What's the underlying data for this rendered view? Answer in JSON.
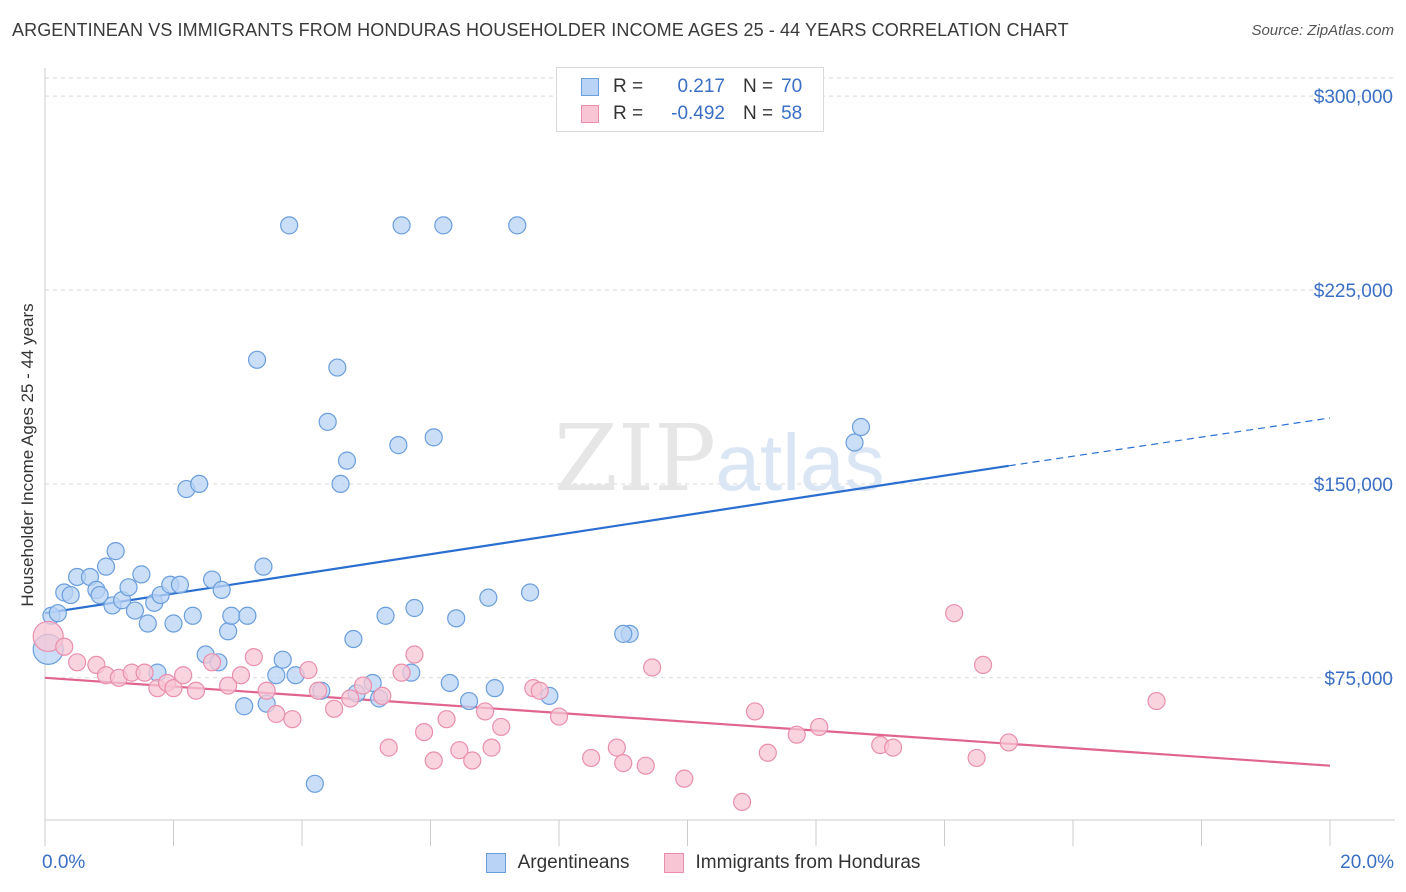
{
  "header": {
    "title": "ARGENTINEAN VS IMMIGRANTS FROM HONDURAS HOUSEHOLDER INCOME AGES 25 - 44 YEARS CORRELATION CHART",
    "source": "Source: ZipAtlas.com"
  },
  "legend_top": {
    "rows": [
      {
        "r_label": "R =",
        "r_value": "0.217",
        "n_label": "N =",
        "n_value": "70"
      },
      {
        "r_label": "R =",
        "r_value": "-0.492",
        "n_label": "N =",
        "n_value": "58"
      }
    ]
  },
  "legend_bottom": {
    "items": [
      {
        "label": "Argentineans"
      },
      {
        "label": "Immigrants from Honduras"
      }
    ]
  },
  "colors": {
    "blue_fill": "#b8d3f5",
    "blue_stroke": "#6b9edc",
    "blue_line": "#2a6fd0",
    "pink_fill": "#f7c5d4",
    "pink_stroke": "#e98fad",
    "pink_line": "#e0648f",
    "tick_text": "#3a6fc4",
    "grid": "#d9d9d9"
  },
  "watermark": {
    "zip": "ZIP",
    "atlas": "atlas"
  },
  "chart_data": {
    "type": "scatter",
    "title": "ARGENTINEAN VS IMMIGRANTS FROM HONDURAS HOUSEHOLDER INCOME AGES 25 - 44 YEARS CORRELATION CHART",
    "xlabel": "",
    "ylabel": "Householder Income Ages 25 - 44 years",
    "xlim": [
      0,
      20
    ],
    "ylim": [
      20000,
      307000
    ],
    "x_tick_labels": [
      "0.0%",
      "20.0%"
    ],
    "y_ticks": [
      75000,
      150000,
      225000,
      300000
    ],
    "y_tick_labels": [
      "$75,000",
      "$150,000",
      "$225,000",
      "$300,000"
    ],
    "grid": true,
    "legend_position": "top-center",
    "series": [
      {
        "name": "Argentineans",
        "r": 0.217,
        "n": 70,
        "trend": {
          "x0": 0,
          "y0": 100000,
          "x1": 15,
          "y1": 157000,
          "dashed_to_x": 20,
          "dashed_to_y": 175500
        },
        "points": [
          [
            0.05,
            86000
          ],
          [
            0.1,
            99000
          ],
          [
            0.2,
            100000
          ],
          [
            0.3,
            108000
          ],
          [
            0.4,
            107000
          ],
          [
            0.5,
            114000
          ],
          [
            0.7,
            114000
          ],
          [
            0.8,
            109000
          ],
          [
            0.85,
            107000
          ],
          [
            0.95,
            118000
          ],
          [
            1.05,
            103000
          ],
          [
            1.1,
            124000
          ],
          [
            1.2,
            105000
          ],
          [
            1.3,
            110000
          ],
          [
            1.4,
            101000
          ],
          [
            1.5,
            115000
          ],
          [
            1.6,
            96000
          ],
          [
            1.7,
            104000
          ],
          [
            1.75,
            77000
          ],
          [
            1.8,
            107000
          ],
          [
            1.95,
            111000
          ],
          [
            2.0,
            96000
          ],
          [
            2.1,
            111000
          ],
          [
            2.2,
            148000
          ],
          [
            2.3,
            99000
          ],
          [
            2.4,
            150000
          ],
          [
            2.5,
            84000
          ],
          [
            2.6,
            113000
          ],
          [
            2.7,
            81000
          ],
          [
            2.75,
            109000
          ],
          [
            2.85,
            93000
          ],
          [
            2.9,
            99000
          ],
          [
            3.1,
            64000
          ],
          [
            3.15,
            99000
          ],
          [
            3.3,
            198000
          ],
          [
            3.4,
            118000
          ],
          [
            3.45,
            65000
          ],
          [
            3.6,
            76000
          ],
          [
            3.7,
            82000
          ],
          [
            3.8,
            250000
          ],
          [
            3.9,
            76000
          ],
          [
            4.2,
            34000
          ],
          [
            4.3,
            70000
          ],
          [
            4.4,
            174000
          ],
          [
            4.55,
            195000
          ],
          [
            4.6,
            150000
          ],
          [
            4.7,
            159000
          ],
          [
            4.8,
            90000
          ],
          [
            4.85,
            69000
          ],
          [
            5.1,
            73000
          ],
          [
            5.2,
            67000
          ],
          [
            5.3,
            99000
          ],
          [
            5.5,
            165000
          ],
          [
            5.55,
            250000
          ],
          [
            5.7,
            77000
          ],
          [
            5.75,
            102000
          ],
          [
            6.05,
            168000
          ],
          [
            6.2,
            250000
          ],
          [
            6.3,
            73000
          ],
          [
            6.4,
            98000
          ],
          [
            6.6,
            66000
          ],
          [
            6.9,
            106000
          ],
          [
            7.0,
            71000
          ],
          [
            7.35,
            250000
          ],
          [
            7.55,
            108000
          ],
          [
            7.85,
            68000
          ],
          [
            9.1,
            92000
          ],
          [
            12.6,
            166000
          ],
          [
            12.7,
            172000
          ],
          [
            9.0,
            92000
          ]
        ]
      },
      {
        "name": "Immigrants from Honduras",
        "r": -0.492,
        "n": 58,
        "trend": {
          "x0": 0,
          "y0": 75000,
          "x1": 20,
          "y1": 41000
        },
        "points": [
          [
            0.05,
            91000
          ],
          [
            0.3,
            87000
          ],
          [
            0.5,
            81000
          ],
          [
            0.8,
            80000
          ],
          [
            0.95,
            76000
          ],
          [
            1.15,
            75000
          ],
          [
            1.35,
            77000
          ],
          [
            1.55,
            77000
          ],
          [
            1.75,
            71000
          ],
          [
            1.9,
            73000
          ],
          [
            2.0,
            71000
          ],
          [
            2.15,
            76000
          ],
          [
            2.35,
            70000
          ],
          [
            2.6,
            81000
          ],
          [
            2.85,
            72000
          ],
          [
            3.05,
            76000
          ],
          [
            3.25,
            83000
          ],
          [
            3.45,
            70000
          ],
          [
            3.6,
            61000
          ],
          [
            3.85,
            59000
          ],
          [
            4.1,
            78000
          ],
          [
            4.25,
            70000
          ],
          [
            4.5,
            63000
          ],
          [
            4.75,
            67000
          ],
          [
            4.95,
            72000
          ],
          [
            5.25,
            68000
          ],
          [
            5.35,
            48000
          ],
          [
            5.55,
            77000
          ],
          [
            5.75,
            84000
          ],
          [
            5.9,
            54000
          ],
          [
            6.05,
            43000
          ],
          [
            6.25,
            59000
          ],
          [
            6.45,
            47000
          ],
          [
            6.65,
            43000
          ],
          [
            6.85,
            62000
          ],
          [
            6.95,
            48000
          ],
          [
            7.1,
            56000
          ],
          [
            7.6,
            71000
          ],
          [
            7.7,
            70000
          ],
          [
            8.0,
            60000
          ],
          [
            8.5,
            44000
          ],
          [
            8.9,
            48000
          ],
          [
            9.0,
            42000
          ],
          [
            9.35,
            41000
          ],
          [
            9.45,
            79000
          ],
          [
            9.95,
            36000
          ],
          [
            10.85,
            27000
          ],
          [
            11.05,
            62000
          ],
          [
            11.25,
            46000
          ],
          [
            11.7,
            53000
          ],
          [
            12.05,
            56000
          ],
          [
            13.0,
            49000
          ],
          [
            13.2,
            48000
          ],
          [
            14.15,
            100000
          ],
          [
            14.5,
            44000
          ],
          [
            14.6,
            80000
          ],
          [
            15.0,
            50000
          ],
          [
            17.3,
            66000
          ]
        ]
      }
    ]
  }
}
